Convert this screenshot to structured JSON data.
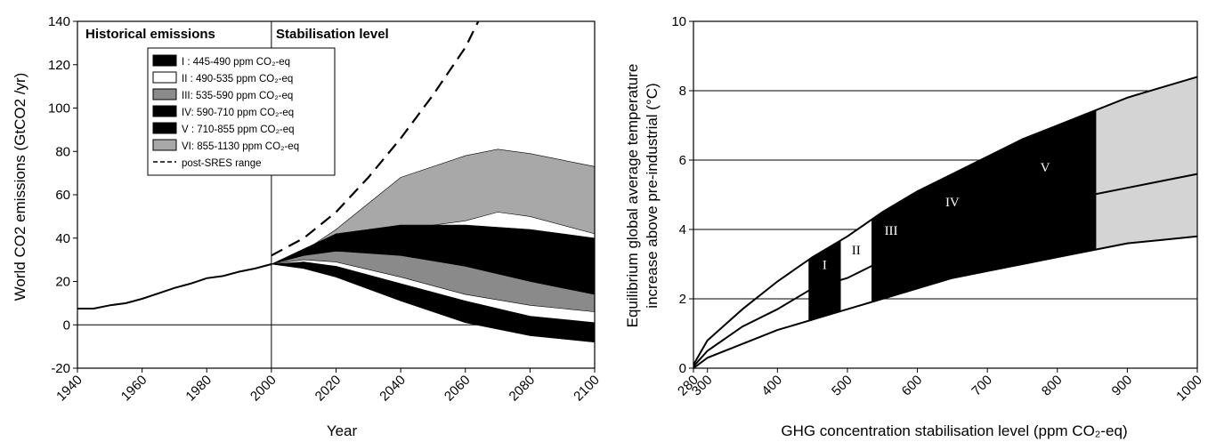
{
  "chart_data": [
    {
      "type": "area",
      "ylabel": "World CO2 emissions (GtCO2 /yr)",
      "xlabel": "Year",
      "xlim": [
        1940,
        2100
      ],
      "ylim": [
        -20,
        140
      ],
      "x_ticks": [
        1940,
        1960,
        1980,
        2000,
        2020,
        2040,
        2060,
        2080,
        2100
      ],
      "y_ticks": [
        -20,
        0,
        20,
        40,
        60,
        80,
        100,
        120,
        140
      ],
      "region_labels": [
        "Historical emissions",
        "Stabilisation level"
      ],
      "historical": {
        "x": [
          1940,
          1945,
          1950,
          1955,
          1960,
          1965,
          1970,
          1975,
          1980,
          1985,
          1990,
          1995,
          2000
        ],
        "y": [
          7.5,
          7.5,
          9,
          10,
          12,
          14.5,
          17,
          19,
          21.5,
          22.5,
          24.5,
          26,
          28
        ]
      },
      "series": [
        {
          "name": "I : 445-490 ppm CO₂-eq",
          "fill": "#000000",
          "x": [
            2000,
            2010,
            2020,
            2040,
            2060,
            2080,
            2100
          ],
          "upper": [
            28,
            29,
            27,
            19,
            11,
            4,
            1
          ],
          "lower": [
            28,
            26,
            22,
            11,
            1,
            -5,
            -8
          ]
        },
        {
          "name": "II : 490-535 ppm CO₂-eq",
          "fill": "#ffffff",
          "x": [
            2000,
            2010,
            2020,
            2040,
            2060,
            2080,
            2100
          ],
          "upper": [
            28,
            30,
            29,
            22,
            14,
            9,
            6
          ],
          "lower": [
            28,
            27,
            24,
            15,
            6,
            1,
            -1
          ]
        },
        {
          "name": "III: 535-590 ppm CO₂-eq",
          "fill": "#8a8a8a",
          "x": [
            2000,
            2010,
            2020,
            2040,
            2060,
            2080,
            2100
          ],
          "upper": [
            28,
            32,
            34,
            32,
            27,
            20,
            14
          ],
          "lower": [
            28,
            28,
            26,
            20,
            12,
            5,
            1
          ]
        },
        {
          "name": "IV: 590-710 ppm CO₂-eq",
          "fill": "#000000",
          "x": [
            2000,
            2010,
            2020,
            2040,
            2060,
            2080,
            2100
          ],
          "upper": [
            28,
            34,
            40,
            44,
            44,
            40,
            34
          ],
          "lower": [
            28,
            29,
            28,
            22,
            16,
            10,
            6
          ]
        },
        {
          "name": "V : 710-855 ppm CO₂-eq",
          "fill": "#000000",
          "x": [
            2000,
            2010,
            2020,
            2040,
            2060,
            2080,
            2100
          ],
          "upper": [
            28,
            35,
            42,
            46,
            46,
            44,
            40
          ],
          "lower": [
            28,
            30,
            28,
            18,
            8,
            0,
            -6
          ]
        },
        {
          "name": "VI: 855-1130 ppm CO₂-eq",
          "fill": "#a8a8a8",
          "x": [
            2000,
            2010,
            2020,
            2040,
            2060,
            2070,
            2080,
            2100
          ],
          "upper": [
            28,
            34,
            44,
            68,
            78,
            81,
            79,
            73
          ],
          "lower": [
            28,
            31,
            36,
            44,
            48,
            52,
            50,
            42
          ]
        },
        {
          "name": "post-SRES range",
          "style": "dashed",
          "x": [
            2000,
            2010,
            2020,
            2030,
            2040,
            2050,
            2060,
            2064
          ],
          "y": [
            32,
            40,
            52,
            68,
            86,
            106,
            128,
            140
          ]
        }
      ],
      "grid": false,
      "legend_placement": "top-center"
    },
    {
      "type": "area",
      "ylabel_line1": "Equilibrium global average temperature",
      "ylabel_line2": "increase above pre-industrial (°C)",
      "xlabel": "GHG concentration stabilisation level (ppm CO₂-eq)",
      "xlim": [
        280,
        1000
      ],
      "ylim": [
        0,
        10
      ],
      "x_ticks": [
        280,
        300,
        400,
        500,
        600,
        700,
        800,
        900,
        1000
      ],
      "y_ticks": [
        0,
        2,
        4,
        6,
        8,
        10
      ],
      "gridlines_y": [
        2,
        4,
        6,
        8
      ],
      "curves": {
        "x": [
          280,
          300,
          350,
          400,
          450,
          500,
          550,
          600,
          650,
          700,
          750,
          800,
          850,
          900,
          950,
          1000
        ],
        "upper": [
          0.1,
          0.8,
          1.7,
          2.5,
          3.2,
          3.8,
          4.5,
          5.1,
          5.6,
          6.1,
          6.6,
          7.0,
          7.4,
          7.8,
          8.1,
          8.4
        ],
        "best": [
          0.05,
          0.5,
          1.2,
          1.7,
          2.3,
          2.6,
          3.1,
          3.5,
          3.9,
          4.2,
          4.5,
          4.8,
          5.0,
          5.2,
          5.4,
          5.6
        ],
        "lower": [
          0.0,
          0.3,
          0.7,
          1.1,
          1.4,
          1.7,
          2.0,
          2.3,
          2.6,
          2.8,
          3.0,
          3.2,
          3.4,
          3.6,
          3.7,
          3.8
        ]
      },
      "bands": [
        {
          "label": "I",
          "x0": 445,
          "x1": 490,
          "fill": "#000000",
          "text": "#ffffff"
        },
        {
          "label": "II",
          "x0": 490,
          "x1": 535,
          "fill": "#ffffff",
          "text": "#000000"
        },
        {
          "label": "III",
          "x0": 535,
          "x1": 590,
          "fill": "#000000",
          "text": "#ffffff"
        },
        {
          "label": "IV",
          "x0": 590,
          "x1": 710,
          "fill": "#000000",
          "text": "#ffffff"
        },
        {
          "label": "V",
          "x0": 710,
          "x1": 855,
          "fill": "#000000",
          "text": "#ffffff"
        },
        {
          "label": "",
          "x0": 855,
          "x1": 1000,
          "fill": "#d4d4d4",
          "text": "#000000"
        }
      ],
      "grid": true
    }
  ]
}
